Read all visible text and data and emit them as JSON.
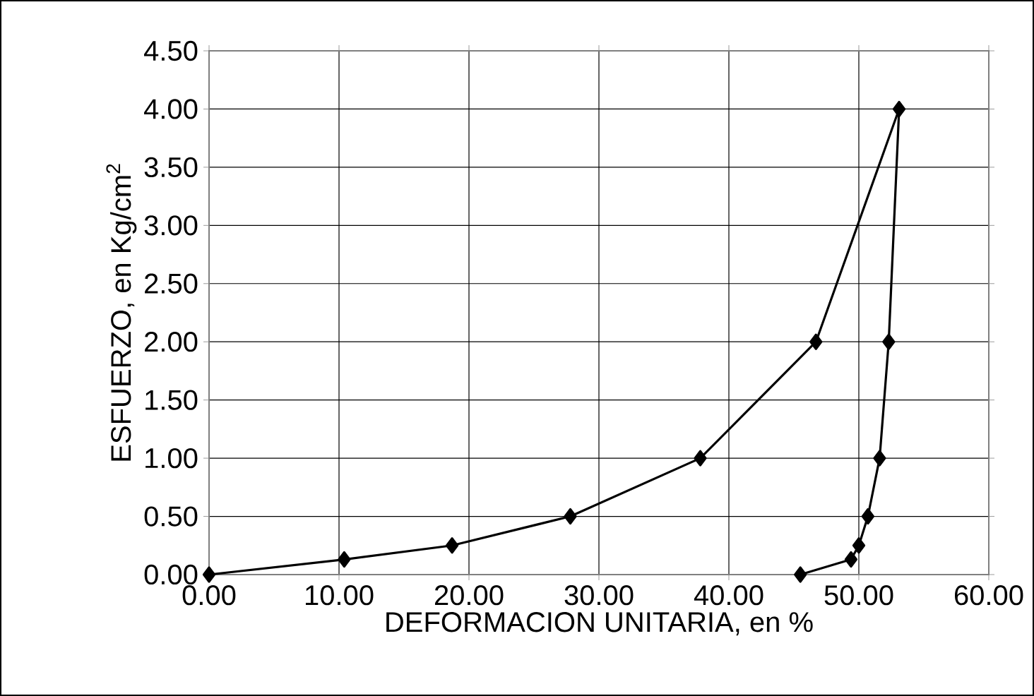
{
  "chart_data": {
    "type": "line",
    "xlabel": "DEFORMACION UNITARIA, en %",
    "ylabel": "ESFUERZO, en Kg/cm$^{2}$",
    "x": [
      0,
      10.4,
      18.7,
      27.8,
      37.8,
      46.7,
      53.1,
      52.3,
      51.6,
      50.7,
      50.0,
      49.4,
      45.5
    ],
    "values": [
      0,
      0.13,
      0.25,
      0.5,
      1.0,
      2.0,
      4.0,
      2.0,
      1.0,
      0.5,
      0.25,
      0.13,
      0
    ],
    "color": "#000000",
    "marker": "diamond",
    "line_style": "solid",
    "grid": true,
    "xlim": [
      0,
      60
    ],
    "ylim": [
      0,
      4.5
    ],
    "xticks": [
      {
        "value": 0,
        "label": "0.00"
      },
      {
        "value": 10,
        "label": "10.00"
      },
      {
        "value": 20,
        "label": "20.00"
      },
      {
        "value": 30,
        "label": "30.00"
      },
      {
        "value": 40,
        "label": "40.00"
      },
      {
        "value": 50,
        "label": "50.00"
      },
      {
        "value": 60,
        "label": "60.00"
      }
    ],
    "yticks": [
      {
        "value": 0,
        "label": "0.00"
      },
      {
        "value": 0.5,
        "label": "0.50"
      },
      {
        "value": 1,
        "label": "1.00"
      },
      {
        "value": 1.5,
        "label": "1.50"
      },
      {
        "value": 2,
        "label": "2.00"
      },
      {
        "value": 2.5,
        "label": "2.50"
      },
      {
        "value": 3,
        "label": "3.00"
      },
      {
        "value": 3.5,
        "label": "3.50"
      },
      {
        "value": 4,
        "label": "4.00"
      },
      {
        "value": 4.5,
        "label": "4.50"
      }
    ]
  }
}
